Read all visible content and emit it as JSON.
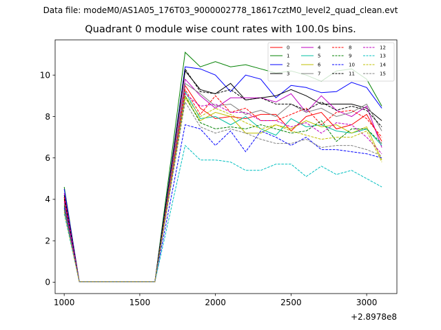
{
  "header": {
    "subtitle": "Data file: modeM0/AS1A05_176T03_9000002778_18617cztM0_level2_quad_clean.evt",
    "title": "Quadrant 0 module wise count rates with 100.0s bins."
  },
  "chart_data": {
    "type": "line",
    "x_offset_label": "+2.8978e8",
    "xlim": [
      940,
      3200
    ],
    "ylim": [
      -0.55,
      11.7
    ],
    "x_ticks": [
      1000,
      1500,
      2000,
      2500,
      3000
    ],
    "y_ticks": [
      0,
      2,
      4,
      6,
      8,
      10
    ],
    "grid": false,
    "legend_location": "top-right",
    "x": [
      1000,
      1100,
      1200,
      1300,
      1400,
      1500,
      1600,
      1800,
      1900,
      2000,
      2100,
      2200,
      2300,
      2400,
      2500,
      2600,
      2700,
      2800,
      2900,
      3000,
      3100
    ],
    "series": [
      {
        "name": "0",
        "color": "#ff0000",
        "dash": "solid",
        "values": [
          4.0,
          0.02,
          0.02,
          0.02,
          0.02,
          0.02,
          0.02,
          9.5,
          8.4,
          7.9,
          8.0,
          7.9,
          8.1,
          8.1,
          7.3,
          8.0,
          8.2,
          7.4,
          7.6,
          8.1,
          6.8
        ]
      },
      {
        "name": "1",
        "color": "#008000",
        "dash": "solid",
        "values": [
          4.6,
          0.02,
          0.02,
          0.02,
          0.02,
          0.02,
          0.02,
          11.1,
          10.4,
          10.65,
          10.4,
          10.5,
          10.3,
          10.1,
          10.2,
          10.0,
          9.7,
          10.2,
          10.3,
          9.8,
          8.5
        ]
      },
      {
        "name": "2",
        "color": "#0000ff",
        "dash": "solid",
        "values": [
          4.5,
          0.02,
          0.02,
          0.02,
          0.02,
          0.02,
          0.02,
          10.4,
          10.3,
          10.0,
          9.2,
          10.0,
          9.8,
          8.9,
          9.5,
          9.4,
          9.15,
          9.2,
          9.65,
          9.4,
          8.4
        ]
      },
      {
        "name": "3",
        "color": "#000000",
        "dash": "solid",
        "values": [
          4.1,
          0.02,
          0.02,
          0.02,
          0.02,
          0.02,
          0.02,
          10.2,
          9.3,
          9.1,
          9.6,
          8.8,
          8.9,
          9.0,
          9.3,
          9.0,
          8.6,
          8.6,
          8.6,
          8.4,
          7.8
        ]
      },
      {
        "name": "4",
        "color": "#c000c0",
        "dash": "solid",
        "values": [
          4.3,
          0.02,
          0.02,
          0.02,
          0.02,
          0.02,
          0.02,
          9.8,
          9.0,
          8.4,
          8.9,
          8.9,
          8.9,
          8.7,
          9.1,
          8.2,
          9.0,
          8.3,
          8.0,
          8.5,
          6.5
        ]
      },
      {
        "name": "5",
        "color": "#00bfa0",
        "dash": "solid",
        "values": [
          3.8,
          0.02,
          0.02,
          0.02,
          0.02,
          0.02,
          0.02,
          9.2,
          7.9,
          8.0,
          7.6,
          8.0,
          7.4,
          7.1,
          7.9,
          7.5,
          7.6,
          7.3,
          7.2,
          7.4,
          6.6
        ]
      },
      {
        "name": "6",
        "color": "#bfbf00",
        "dash": "solid",
        "values": [
          3.5,
          0.02,
          0.02,
          0.02,
          0.02,
          0.02,
          0.02,
          8.9,
          7.8,
          8.2,
          8.0,
          7.2,
          7.2,
          7.6,
          7.4,
          7.8,
          7.5,
          7.6,
          7.2,
          7.5,
          5.9
        ]
      },
      {
        "name": "7",
        "color": "#808080",
        "dash": "solid",
        "values": [
          3.8,
          0.02,
          0.02,
          0.02,
          0.02,
          0.02,
          0.02,
          9.6,
          9.1,
          8.5,
          8.6,
          8.1,
          8.3,
          8.0,
          8.6,
          8.2,
          8.4,
          8.0,
          8.2,
          8.6,
          7.3
        ]
      },
      {
        "name": "8",
        "color": "#ff0000",
        "dash": "dashed",
        "values": [
          4.1,
          0.02,
          0.02,
          0.02,
          0.02,
          0.02,
          0.02,
          9.3,
          8.1,
          9.0,
          8.2,
          8.4,
          7.8,
          7.8,
          8.1,
          8.4,
          7.6,
          8.2,
          8.3,
          7.9,
          7.0
        ]
      },
      {
        "name": "9",
        "color": "#008000",
        "dash": "dashed",
        "values": [
          3.7,
          0.02,
          0.02,
          0.02,
          0.02,
          0.02,
          0.02,
          9.0,
          7.7,
          7.4,
          7.5,
          7.4,
          7.6,
          7.4,
          7.2,
          7.3,
          7.8,
          6.8,
          7.4,
          7.4,
          6.7
        ]
      },
      {
        "name": "10",
        "color": "#0000ff",
        "dash": "dashed",
        "values": [
          3.6,
          0.02,
          0.02,
          0.02,
          0.02,
          0.02,
          0.02,
          7.6,
          7.4,
          6.6,
          7.3,
          6.3,
          7.3,
          7.0,
          6.6,
          7.0,
          6.4,
          6.4,
          6.3,
          6.2,
          6.0
        ]
      },
      {
        "name": "11",
        "color": "#000000",
        "dash": "dashed",
        "values": [
          4.2,
          0.02,
          0.02,
          0.02,
          0.02,
          0.02,
          0.02,
          10.3,
          9.2,
          9.1,
          9.3,
          8.8,
          8.9,
          8.6,
          8.6,
          8.3,
          8.7,
          8.3,
          8.5,
          8.3,
          7.5
        ]
      },
      {
        "name": "12",
        "color": "#c000c0",
        "dash": "dashed",
        "values": [
          3.9,
          0.02,
          0.02,
          0.02,
          0.02,
          0.02,
          0.02,
          9.1,
          8.5,
          8.6,
          8.2,
          8.2,
          7.8,
          7.8,
          7.5,
          7.7,
          7.2,
          7.7,
          7.6,
          7.0,
          6.2
        ]
      },
      {
        "name": "13",
        "color": "#00bfc0",
        "dash": "dashed",
        "values": [
          3.3,
          0.02,
          0.02,
          0.02,
          0.02,
          0.02,
          0.02,
          6.6,
          5.9,
          5.9,
          5.8,
          5.4,
          5.4,
          5.7,
          5.7,
          5.1,
          5.6,
          5.2,
          5.4,
          5.0,
          4.6
        ]
      },
      {
        "name": "14",
        "color": "#bfbf00",
        "dash": "dashed",
        "values": [
          3.4,
          0.02,
          0.02,
          0.02,
          0.02,
          0.02,
          0.02,
          9.0,
          8.0,
          8.4,
          8.1,
          7.7,
          7.4,
          7.6,
          7.3,
          7.1,
          6.9,
          7.0,
          7.0,
          7.3,
          5.8
        ]
      },
      {
        "name": "15",
        "color": "#808080",
        "dash": "dashed",
        "values": [
          3.5,
          0.02,
          0.02,
          0.02,
          0.02,
          0.02,
          0.02,
          8.7,
          7.5,
          7.2,
          7.4,
          7.2,
          6.9,
          6.7,
          6.7,
          6.9,
          6.5,
          6.6,
          6.6,
          6.4,
          6.1
        ]
      }
    ]
  }
}
